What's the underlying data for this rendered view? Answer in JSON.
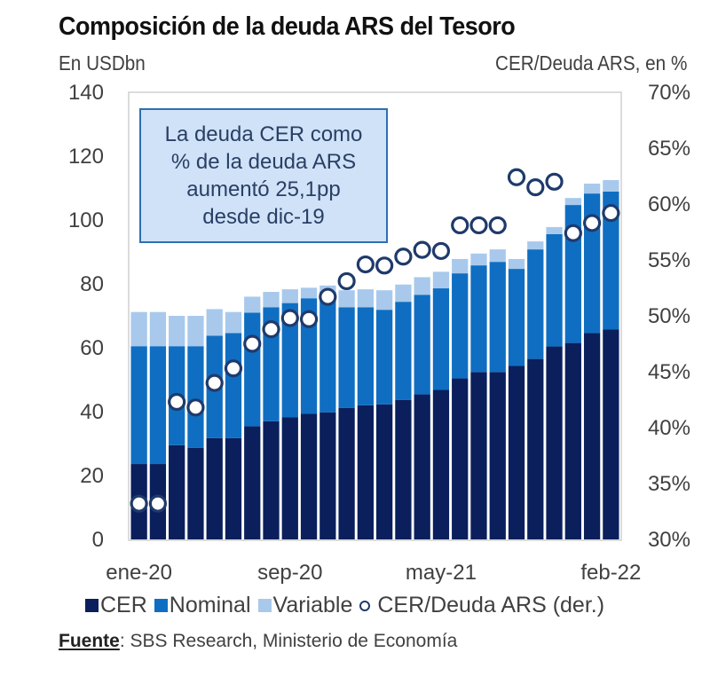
{
  "chart_data": {
    "type": "bar",
    "subtype": "stacked-bar-with-secondary-scatter",
    "title": "Composición de la deuda ARS del Tesoro",
    "ylabel": "En USDbn",
    "y2label": "CER/Deuda ARS, en %",
    "ylim": [
      0,
      140
    ],
    "y2lim": [
      30,
      70
    ],
    "yticks": [
      "0",
      "20",
      "40",
      "60",
      "80",
      "100",
      "120",
      "140"
    ],
    "y2ticks": [
      "30%",
      "35%",
      "40%",
      "45%",
      "50%",
      "55%",
      "60%",
      "65%",
      "70%"
    ],
    "categories": [
      "ene-20",
      "feb-20",
      "mar-20",
      "abr-20",
      "may-20",
      "jun-20",
      "jul-20",
      "ago-20",
      "sep-20",
      "oct-20",
      "nov-20",
      "dic-20",
      "ene-21",
      "feb-21",
      "mar-21",
      "abr-21",
      "may-21",
      "jun-21",
      "jul-21",
      "ago-21",
      "sep-21",
      "oct-21",
      "nov-21",
      "dic-21",
      "ene-22",
      "feb-22"
    ],
    "xtick_labels": [
      {
        "index": 0,
        "label": "ene-20"
      },
      {
        "index": 8,
        "label": "sep-20"
      },
      {
        "index": 16,
        "label": "may-21"
      },
      {
        "index": 25,
        "label": "feb-22"
      }
    ],
    "series": [
      {
        "name": "CER",
        "axis": "left",
        "type": "bar",
        "color": "#0a1f5c",
        "values": [
          23.6,
          23.6,
          29.5,
          28.7,
          31.7,
          31.7,
          35.4,
          37.0,
          38.2,
          39.3,
          39.8,
          41.2,
          42.0,
          42.3,
          43.7,
          45.4,
          46.8,
          50.4,
          52.4,
          52.4,
          54.3,
          56.5,
          60.4,
          61.5,
          64.6,
          65.7
        ]
      },
      {
        "name": "Nominal",
        "axis": "left",
        "type": "bar",
        "color": "#0f6ec2",
        "values": [
          36.9,
          36.9,
          31.0,
          31.8,
          32.1,
          32.9,
          35.6,
          35.7,
          35.8,
          36.2,
          37.7,
          31.5,
          30.7,
          29.6,
          30.7,
          31.2,
          31.8,
          32.9,
          33.4,
          34.5,
          30.4,
          34.3,
          35.2,
          43.2,
          43.7,
          43.2
        ]
      },
      {
        "name": "Variable",
        "axis": "left",
        "type": "bar",
        "color": "#a8c9ec",
        "values": [
          10.7,
          10.7,
          9.5,
          9.5,
          8.3,
          6.6,
          5.0,
          4.8,
          4.3,
          3.3,
          2.0,
          5.3,
          5.6,
          6.1,
          5.4,
          5.5,
          5.2,
          4.5,
          3.7,
          3.9,
          3.1,
          2.5,
          2.2,
          2.2,
          3.1,
          3.6
        ]
      },
      {
        "name": "CER/Deuda ARS (der.)",
        "axis": "right",
        "type": "scatter",
        "color": "#1f3a6b",
        "values": [
          33.2,
          33.2,
          42.3,
          41.8,
          44.0,
          45.3,
          47.5,
          48.8,
          49.8,
          49.7,
          51.7,
          53.1,
          54.6,
          54.5,
          55.3,
          55.9,
          55.8,
          58.1,
          58.1,
          58.1,
          62.4,
          61.5,
          62.0,
          57.4,
          58.3,
          59.2
        ]
      }
    ],
    "legend": {
      "position": "bottom",
      "entries": [
        "CER",
        "Nominal",
        "Variable",
        "CER/Deuda ARS (der.)"
      ]
    },
    "grid": false,
    "annotation": [
      "La deuda CER como",
      "% de la deuda ARS",
      "aumentó 25,1pp",
      "desde dic-19"
    ]
  },
  "header": {
    "title": "Composición de la deuda ARS del Tesoro",
    "left_axis_label": "En USDbn",
    "right_axis_label": "CER/Deuda ARS, en %"
  },
  "legend": {
    "cer": "CER",
    "nominal": "Nominal",
    "variable": "Variable",
    "ratio": "CER/Deuda ARS (der.)"
  },
  "source": {
    "label": "Fuente",
    "text": ": SBS Research, Ministerio de Economía"
  }
}
